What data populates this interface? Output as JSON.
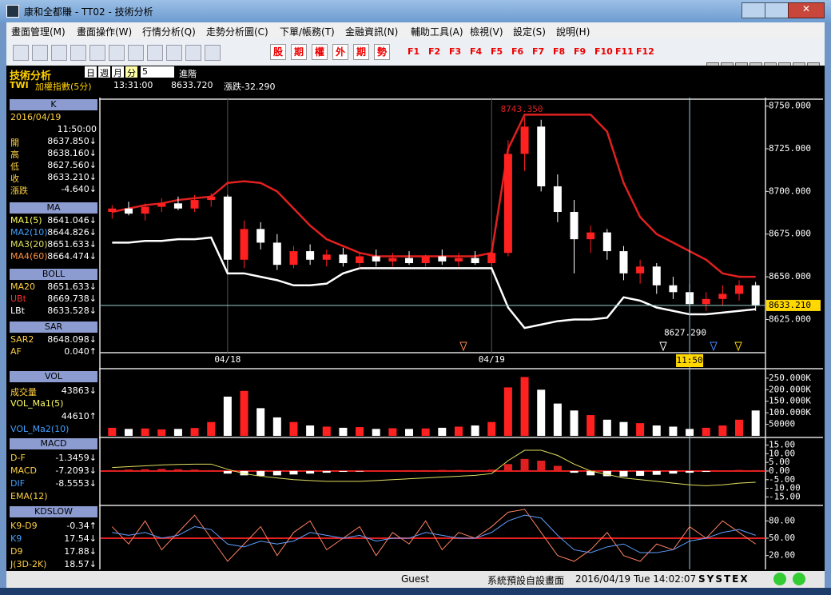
{
  "window": {
    "title": "康和全都賺 - TT02 - 技術分析"
  },
  "menu": [
    "畫面管理(M)",
    "畫面操作(W)",
    "行情分析(Q)",
    "走勢分析圖(C)",
    "下單/帳務(T)",
    "金融資訊(N)",
    "輔助工具(A)",
    "檢視(V)",
    "設定(S)",
    "說明(H)"
  ],
  "toolbar": {
    "buttons": [
      "股",
      "期",
      "權",
      "外",
      "期",
      "勢"
    ],
    "function_keys": [
      "F1",
      "F2",
      "F3",
      "F4",
      "F5",
      "F6",
      "F7",
      "F8",
      "F9",
      "F10",
      "F11",
      "F12"
    ]
  },
  "header": {
    "title": "技術分析",
    "periods": [
      "日",
      "週",
      "月",
      "分"
    ],
    "count": "5",
    "advanced": "進階",
    "symbol": "TWI",
    "name": "加權指數(5分)",
    "time": "13:31:00",
    "price": "8633.720",
    "change": "漲跌-32.290"
  },
  "left_panel": [
    {
      "title": "K",
      "rows": [
        {
          "label": "2016/04/19",
          "color": "#ffd040"
        },
        {
          "value": "11:50:00"
        },
        {
          "label": "開",
          "value": "8637.850↓",
          "color": "#ffd040"
        },
        {
          "label": "高",
          "value": "8638.160↓",
          "color": "#ffd040"
        },
        {
          "label": "低",
          "value": "8627.560↓",
          "color": "#ffd040"
        },
        {
          "label": "收",
          "value": "8633.210↓",
          "color": "#ffd040"
        },
        {
          "label": "漲跌",
          "value": "-4.640↓",
          "color": "#ffd040"
        }
      ]
    },
    {
      "title": "MA",
      "rows": [
        {
          "label": "MA1(5)",
          "value": "8641.046↓",
          "color": "#ffff60"
        },
        {
          "label": "MA2(10)",
          "value": "8644.826↓",
          "color": "#40a0ff"
        },
        {
          "label": "MA3(20)",
          "value": "8651.633↓",
          "color": "#e0e060"
        },
        {
          "label": "MA4(60)",
          "value": "8664.474↓",
          "color": "#ff9040"
        }
      ]
    },
    {
      "title": "BOLL",
      "rows": [
        {
          "label": "MA20",
          "value": "8651.633↓",
          "color": "#ffd040"
        },
        {
          "label": "UBt",
          "value": "8669.738↓",
          "color": "#ff3030"
        },
        {
          "label": "LBt",
          "value": "8633.528↓",
          "color": "#ffffff"
        }
      ]
    },
    {
      "title": "SAR",
      "rows": [
        {
          "label": "SAR2",
          "value": "8648.098↓",
          "color": "#ffd040"
        },
        {
          "label": "AF",
          "value": "0.040↑",
          "color": "#ffd040"
        }
      ]
    },
    {
      "title": "VOL",
      "rows": [
        {
          "label": "成交量",
          "value": "43863↓",
          "color": "#ffd040"
        },
        {
          "label": "VOL_Ma1(5)",
          "color": "#ffff60"
        },
        {
          "value": "44610↑"
        },
        {
          "label": "VOL_Ma2(10)",
          "color": "#40a0ff"
        }
      ]
    },
    {
      "title": "MACD",
      "rows": [
        {
          "label": "D-F",
          "value": "-1.3459↓",
          "color": "#ffd040"
        },
        {
          "label": "MACD",
          "value": "-7.2093↓",
          "color": "#ffd040"
        },
        {
          "label": "DIF",
          "value": "-8.5553↓",
          "color": "#40a0ff"
        },
        {
          "label": "EMA(12)",
          "color": "#ffd040"
        }
      ]
    },
    {
      "title": "KDSLOW",
      "rows": [
        {
          "label": "K9-D9",
          "value": "-0.34↑",
          "color": "#ffd040"
        },
        {
          "label": "K9",
          "value": "17.54↓",
          "color": "#40a0ff"
        },
        {
          "label": "D9",
          "value": "17.88↓",
          "color": "#ffd040"
        },
        {
          "label": "J(3D-2K)",
          "value": "18.57↓",
          "color": "#ffd040"
        }
      ]
    }
  ],
  "chart_data": [
    {
      "type": "candlestick",
      "categories": [
        null,
        null,
        null,
        null,
        null,
        null,
        null,
        "04/18",
        null,
        null,
        null,
        null,
        null,
        null,
        null,
        null,
        null,
        null,
        null,
        null,
        null,
        null,
        null,
        "04/19",
        null,
        null,
        null,
        null,
        null,
        null,
        null,
        null,
        null,
        null,
        null,
        null,
        null,
        null,
        null,
        null
      ],
      "open": [
        8688,
        8690,
        8687,
        8691,
        8693,
        8690,
        8695,
        8697,
        8660,
        8678,
        8670,
        8657,
        8665,
        8660,
        8663,
        8658,
        8662,
        8659,
        8661,
        8658,
        8662,
        8659,
        8661,
        8658,
        8664,
        8722,
        8738,
        8703,
        8688,
        8672,
        8676,
        8665,
        8652,
        8656,
        8645,
        8641,
        8634,
        8637,
        8640,
        8645
      ],
      "high": [
        8692,
        8694,
        8693,
        8696,
        8697,
        8698,
        8699,
        8698,
        8683,
        8682,
        8675,
        8668,
        8669,
        8666,
        8667,
        8664,
        8666,
        8664,
        8665,
        8663,
        8666,
        8664,
        8665,
        8667,
        8730,
        8743.35,
        8742,
        8710,
        8695,
        8680,
        8678,
        8668,
        8660,
        8658,
        8650,
        8646,
        8641,
        8645,
        8648,
        8647
      ],
      "low": [
        8684,
        8686,
        8683,
        8688,
        8689,
        8688,
        8691,
        8652,
        8655,
        8666,
        8654,
        8655,
        8657,
        8656,
        8656,
        8655,
        8656,
        8656,
        8657,
        8656,
        8657,
        8656,
        8657,
        8656,
        8662,
        8712,
        8700,
        8682,
        8652,
        8664,
        8660,
        8648,
        8646,
        8640,
        8637,
        8627.29,
        8630,
        8633,
        8636,
        8630
      ],
      "close": [
        8690,
        8687,
        8691,
        8693,
        8690,
        8695,
        8697,
        8660,
        8678,
        8670,
        8657,
        8665,
        8660,
        8663,
        8658,
        8662,
        8659,
        8661,
        8658,
        8662,
        8659,
        8661,
        8658,
        8664,
        8722,
        8738,
        8703,
        8688,
        8672,
        8676,
        8665,
        8652,
        8656,
        8645,
        8641,
        8634,
        8637,
        8640,
        8645,
        8633.21
      ],
      "up_color": "#ff2020",
      "down_color": "#ffffff",
      "lines": [
        {
          "color": "#e02020",
          "values": [
            8688,
            8690,
            8692,
            8693,
            8695,
            8696,
            8697,
            8705,
            8706,
            8705,
            8700,
            8690,
            8680,
            8672,
            8668,
            8664,
            8662,
            8662,
            8662,
            8662,
            8662,
            8662,
            8662,
            8664,
            8725,
            8745,
            8745,
            8745,
            8745,
            8745,
            8735,
            8705,
            8685,
            8675,
            8670,
            8665,
            8660,
            8652,
            8650,
            8650
          ]
        },
        {
          "color": "#ffffff",
          "values": [
            8670,
            8670,
            8671,
            8671,
            8672,
            8672,
            8673,
            8652,
            8652,
            8650,
            8648,
            8645,
            8645,
            8646,
            8652,
            8655,
            8655,
            8655,
            8655,
            8655,
            8655,
            8655,
            8655,
            8655,
            8632,
            8620,
            8622,
            8624,
            8625,
            8625,
            8626,
            8638,
            8636,
            8632,
            8630,
            8628,
            8628,
            8629,
            8630,
            8631
          ]
        }
      ],
      "ylim": [
        8606,
        8755
      ],
      "yticks": [
        {
          "value": 8750,
          "label": "8750.000"
        },
        {
          "value": 8725,
          "label": "8725.000"
        },
        {
          "value": 8700,
          "label": "8700.000"
        },
        {
          "value": 8675,
          "label": "8675.000"
        },
        {
          "value": 8650,
          "label": "8650.000"
        },
        {
          "value": 8625,
          "label": "8625.000"
        }
      ],
      "annotations": {
        "high": "8743.350",
        "low": "8627.290",
        "last": "8633.210",
        "cursor": "11:50"
      }
    },
    {
      "type": "bar",
      "values": [
        35000,
        30000,
        32000,
        28000,
        30000,
        34000,
        60000,
        170000,
        195000,
        120000,
        80000,
        60000,
        45000,
        40000,
        35000,
        38000,
        30000,
        33000,
        30000,
        32000,
        35000,
        40000,
        45000,
        60000,
        210000,
        255000,
        200000,
        140000,
        110000,
        90000,
        70000,
        60000,
        55000,
        45000,
        40000,
        30000,
        35000,
        45000,
        70000,
        110000
      ],
      "ylim": [
        0,
        260000
      ],
      "yticks": [
        {
          "value": 250000,
          "label": "250.000K"
        },
        {
          "value": 200000,
          "label": "200.000K"
        },
        {
          "value": 150000,
          "label": "150.000K"
        },
        {
          "value": 100000,
          "label": "100.000K"
        },
        50000
      ]
    },
    {
      "type": "bar",
      "values": [
        0.5,
        0.8,
        1,
        1.2,
        1,
        0.8,
        0.5,
        -1.5,
        -2.5,
        -2.8,
        -2.5,
        -2,
        -1.5,
        -1,
        -0.5,
        -0.3,
        0.2,
        0.4,
        0.5,
        0.5,
        0.6,
        0.6,
        0.5,
        0.8,
        4,
        7,
        6,
        3,
        -1,
        -2.5,
        -3,
        -3.2,
        -2.8,
        -2.2,
        -1.5,
        -1,
        -0.5,
        0.4,
        0.6,
        0.5
      ],
      "line": {
        "color": "#e0e060",
        "values": [
          2,
          2.5,
          3,
          3.5,
          3.8,
          4,
          4,
          1,
          -1.5,
          -3,
          -4,
          -5,
          -5.5,
          -6,
          -6,
          -6,
          -5.5,
          -5,
          -4.5,
          -4,
          -3.5,
          -3,
          -2.5,
          -1.5,
          6,
          12,
          12,
          9,
          4,
          0,
          -2,
          -4,
          -5,
          -6,
          -7,
          -8,
          -8.5,
          -8,
          -7,
          -6.5
        ]
      },
      "ylim": [
        -19,
        18.5
      ],
      "yticks": [
        {
          "value": 15,
          "label": "15.00"
        },
        {
          "value": 10,
          "label": "10.00"
        },
        {
          "value": 5,
          "label": "5.00"
        },
        {
          "value": 0,
          "label": "0.00"
        },
        {
          "value": -5,
          "label": "-5.00"
        },
        {
          "value": -10,
          "label": "-10.00"
        },
        {
          "value": -15,
          "label": "-15.00"
        }
      ]
    },
    {
      "type": "line",
      "series": [
        {
          "color": "#ff8060",
          "values": [
            70,
            40,
            80,
            30,
            60,
            90,
            50,
            10,
            40,
            70,
            20,
            60,
            80,
            30,
            50,
            70,
            20,
            60,
            40,
            80,
            30,
            60,
            50,
            70,
            95,
            100,
            60,
            20,
            10,
            30,
            60,
            20,
            10,
            40,
            30,
            70,
            50,
            80,
            60,
            40
          ]
        },
        {
          "color": "#60a0ff",
          "values": [
            60,
            55,
            60,
            50,
            55,
            70,
            65,
            40,
            35,
            45,
            40,
            45,
            60,
            55,
            50,
            55,
            45,
            50,
            50,
            60,
            55,
            50,
            50,
            60,
            80,
            90,
            85,
            55,
            30,
            25,
            35,
            40,
            25,
            25,
            30,
            45,
            50,
            60,
            65,
            55
          ]
        }
      ],
      "ylim": [
        -4,
        104
      ],
      "yticks": [
        {
          "value": 80,
          "label": "80.00"
        },
        {
          "value": 50,
          "label": "50.00"
        },
        {
          "value": 20,
          "label": "20.00"
        }
      ]
    }
  ],
  "status": [
    "Guest",
    "系統預設自設畫面",
    "2016/04/19 Tue 14:02:07",
    "SYSTEX"
  ]
}
